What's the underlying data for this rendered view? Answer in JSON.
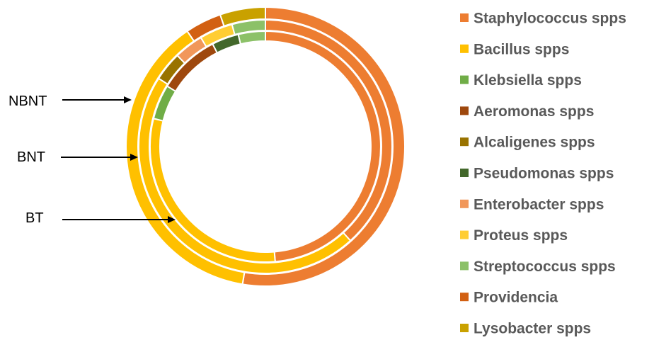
{
  "chart_data": {
    "type": "donut",
    "title": "",
    "categories": [
      "Staphylococcus spps",
      "Bacillus spps",
      "Klebsiella spps",
      "Aeromonas spps",
      "Alcaligenes spps",
      "Pseudomonas spps",
      "Enterobacter spps",
      "Proteus spps",
      "Streptococcus spps",
      "Providencia",
      "Lysobacter spps"
    ],
    "colors": [
      "#ED7D31",
      "#FFC000",
      "#70AD47",
      "#9E480E",
      "#997300",
      "#43682B",
      "#F1975A",
      "#FFCD33",
      "#8CC168",
      "#D26012",
      "#C9A100"
    ],
    "series": [
      {
        "name": "NBNT",
        "ring": "outer",
        "values": [
          50,
          36,
          0,
          0,
          0,
          0,
          0,
          0,
          0,
          4,
          5
        ]
      },
      {
        "name": "BNT",
        "ring": "middle",
        "values": [
          36,
          43,
          0,
          0,
          3.5,
          0,
          3.5,
          4,
          4,
          0,
          0
        ]
      },
      {
        "name": "BT",
        "ring": "inner",
        "values": [
          45,
          28,
          4.5,
          8,
          0,
          3.5,
          0,
          0,
          3.5,
          0,
          0
        ]
      }
    ],
    "ring_labels": [
      "NBNT",
      "BNT",
      "BT"
    ],
    "legend_position": "right"
  }
}
